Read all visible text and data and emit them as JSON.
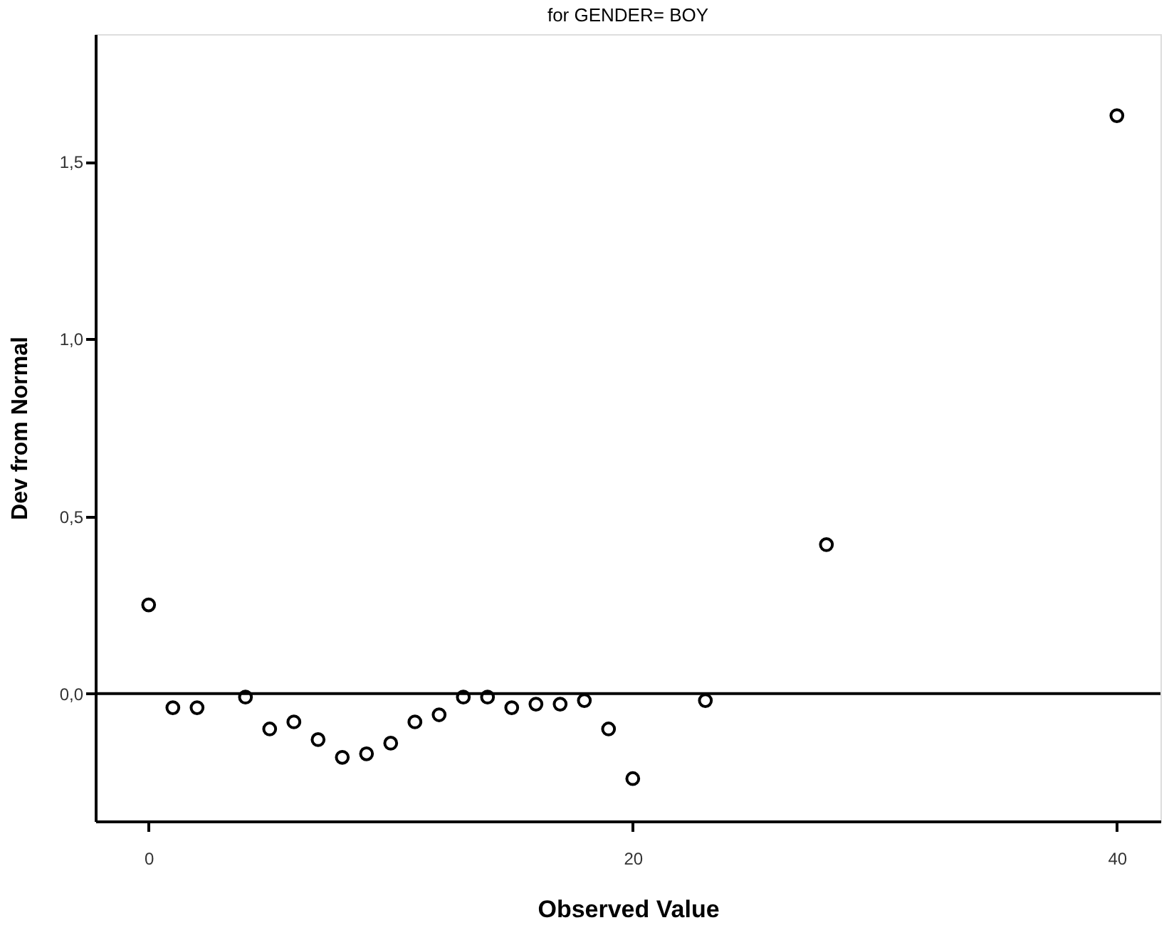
{
  "chart_data": {
    "type": "scatter",
    "title": "for GENDER= BOY",
    "xlabel": "Observed Value",
    "ylabel": "Dev from Normal",
    "x": [
      0,
      1,
      2,
      4,
      5,
      6,
      7,
      8,
      9,
      10,
      11,
      12,
      13,
      14,
      15,
      16,
      17,
      18,
      19,
      20,
      23,
      28,
      40
    ],
    "series": [
      {
        "color": "#000000",
        "values": [
          0.25,
          -0.04,
          -0.04,
          -0.01,
          -0.1,
          -0.08,
          -0.13,
          -0.18,
          -0.17,
          -0.14,
          -0.08,
          -0.06,
          -0.01,
          -0.01,
          -0.04,
          -0.03,
          -0.03,
          -0.02,
          -0.1,
          -0.24,
          -0.02,
          0.42,
          1.63
        ]
      }
    ],
    "xlim": [
      -2.2,
      41.8
    ],
    "ylim": [
      -0.36,
      1.86
    ],
    "xticks": [
      0,
      20,
      40
    ],
    "yticks": [
      {
        "value": 0,
        "label": "0,0"
      },
      {
        "value": 0.5,
        "label": "0,5"
      },
      {
        "value": 1,
        "label": "1,0"
      },
      {
        "value": 1.5,
        "label": "1,5"
      }
    ],
    "ref_lines": [
      {
        "axis": "y",
        "value": 0
      }
    ],
    "marker": "circle",
    "grid": false
  }
}
